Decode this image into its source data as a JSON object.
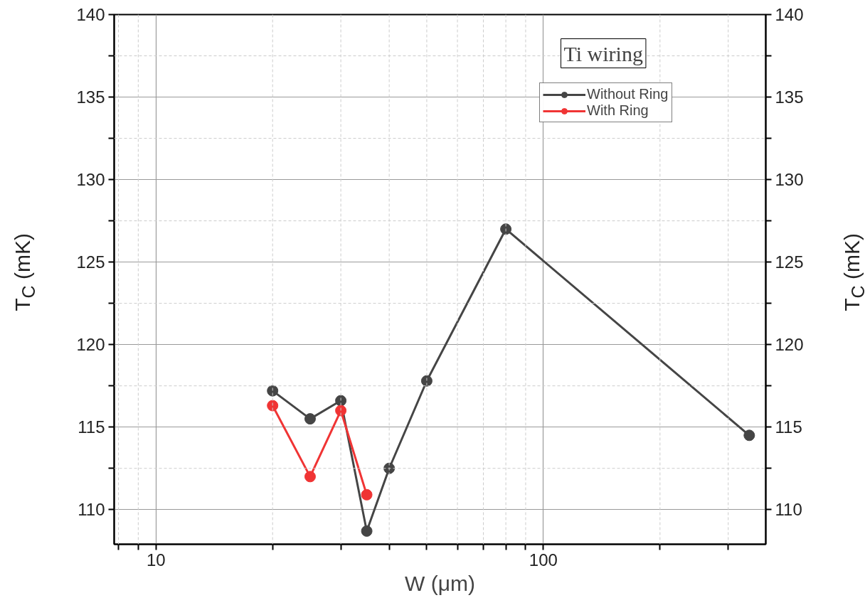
{
  "chart_data": {
    "type": "line",
    "xlabel": "W (μm)",
    "ylabel": "T$_{C}$ (mK)",
    "y2label": "T$_{C}$ (mK)",
    "annotations": [
      "Ti wiring"
    ],
    "log": "x",
    "xlim": [
      7.8,
      375
    ],
    "ylim": [
      107.9,
      140
    ],
    "y2lim": [
      107.9,
      140
    ],
    "xticks": [
      {
        "value": 8,
        "label": null
      },
      {
        "value": 9,
        "label": null
      },
      10,
      {
        "value": 20,
        "label": null
      },
      {
        "value": 30,
        "label": null
      },
      {
        "value": 40,
        "label": null
      },
      {
        "value": 50,
        "label": null
      },
      {
        "value": 60,
        "label": null
      },
      {
        "value": 70,
        "label": null
      },
      {
        "value": 80,
        "label": null
      },
      {
        "value": 90,
        "label": null
      },
      100,
      {
        "value": 200,
        "label": null
      },
      {
        "value": 300,
        "label": null
      }
    ],
    "yticks": [
      110,
      {
        "value": 112.5,
        "label": null
      },
      115,
      {
        "value": 117.5,
        "label": null
      },
      120,
      {
        "value": 122.5,
        "label": null
      },
      125,
      {
        "value": 127.5,
        "label": null
      },
      130,
      {
        "value": 132.5,
        "label": null
      },
      135,
      {
        "value": 137.5,
        "label": null
      },
      140
    ],
    "y2ticks": [
      110,
      {
        "value": 112.5,
        "label": null
      },
      115,
      {
        "value": 117.5,
        "label": null
      },
      120,
      {
        "value": 122.5,
        "label": null
      },
      125,
      {
        "value": 127.5,
        "label": null
      },
      130,
      {
        "value": 132.5,
        "label": null
      },
      135,
      {
        "value": 137.5,
        "label": null
      },
      140
    ],
    "grid": true,
    "legend": "top right",
    "marker": "circle",
    "line_style": "solid",
    "series": [
      {
        "name": "Without Ring",
        "color": "#454545",
        "x": [
          20,
          25,
          30,
          35,
          40,
          50,
          80,
          340
        ],
        "values": [
          117.2,
          115.5,
          116.6,
          108.7,
          112.5,
          117.8,
          127.0,
          114.5
        ]
      },
      {
        "name": "With Ring",
        "color": "#f03434",
        "x": [
          20,
          25,
          30,
          35
        ],
        "values": [
          116.3,
          112.0,
          116.0,
          110.9
        ]
      }
    ]
  }
}
